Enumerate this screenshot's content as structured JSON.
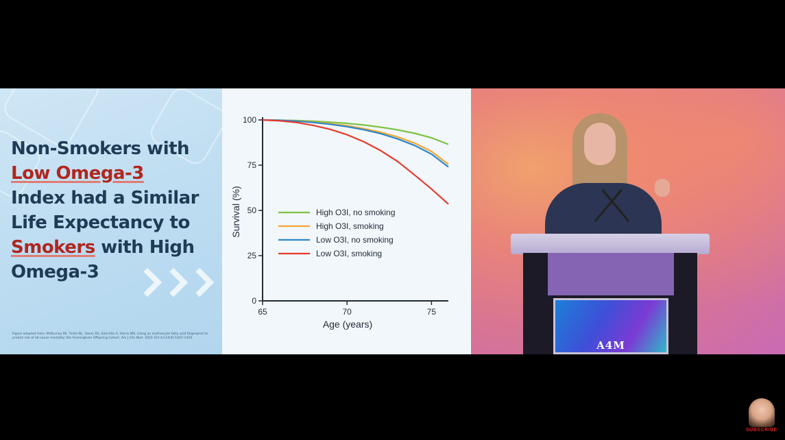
{
  "slide": {
    "headline_lines": [
      {
        "text": "Non-Smokers with",
        "highlight": false
      },
      {
        "text": "Low Omega-3",
        "highlight": true
      },
      {
        "text": "Index had a Similar",
        "highlight": false
      },
      {
        "text": "Life Expectancy to",
        "highlight": false
      },
      {
        "text_highlight": "Smokers",
        "text_rest": " with High"
      },
      {
        "text": "Omega-3",
        "highlight": false
      }
    ],
    "citation": "Figure adapted from: McBurney MI, Tintle NL, Vasan RS, Sala-Vila A, Harris WS. Using an erythrocyte fatty acid fingerprint to predict risk of all-cause mortality: the Framingham Offspring Cohort. Am J Clin Nutr. 2021 Oct 4;114(4):1447-1454.",
    "colors": {
      "headline": "#1f3b55",
      "highlight": "#b0271f",
      "panel_bg": "#bcdcf1"
    }
  },
  "chart_data": {
    "type": "line",
    "title": "",
    "xlabel": "Age (years)",
    "ylabel": "Survival (%)",
    "xlim": [
      65,
      76
    ],
    "ylim": [
      0,
      100
    ],
    "xticks": [
      65,
      70,
      75
    ],
    "yticks": [
      0,
      25,
      50,
      75,
      100
    ],
    "grid": false,
    "legend_position": "center",
    "series": [
      {
        "name": "High O3I, no smoking",
        "color": "#7cc242",
        "x": [
          65,
          66,
          67,
          68,
          69,
          70,
          71,
          72,
          73,
          74,
          75,
          76
        ],
        "y": [
          100,
          99.9,
          99.7,
          99.3,
          98.8,
          98.1,
          97.2,
          96.0,
          94.5,
          92.6,
          90.1,
          86.5
        ]
      },
      {
        "name": "High O3I, smoking",
        "color": "#f5a531",
        "x": [
          65,
          66,
          67,
          68,
          69,
          70,
          71,
          72,
          73,
          74,
          75,
          76
        ],
        "y": [
          100,
          99.8,
          99.4,
          98.8,
          97.9,
          96.8,
          95.2,
          93.2,
          90.6,
          87.2,
          82.6,
          75.5
        ]
      },
      {
        "name": "Low O3I, no smoking",
        "color": "#2c86c7",
        "x": [
          65,
          66,
          67,
          68,
          69,
          70,
          71,
          72,
          73,
          74,
          75,
          76
        ],
        "y": [
          100,
          99.8,
          99.3,
          98.6,
          97.6,
          96.3,
          94.6,
          92.4,
          89.5,
          85.9,
          81.1,
          74.0
        ]
      },
      {
        "name": "Low O3I, smoking",
        "color": "#e8392a",
        "x": [
          65,
          66,
          67,
          68,
          69,
          70,
          71,
          72,
          73,
          74,
          75,
          76
        ],
        "y": [
          100,
          99.5,
          98.6,
          97.0,
          94.8,
          91.8,
          87.9,
          83.0,
          77.0,
          69.6,
          61.8,
          53.5
        ]
      }
    ]
  },
  "stage": {
    "podium_logo": "A4M",
    "colors": {
      "backdrop": "#e9847a",
      "podium_glow": "#be8cff"
    }
  },
  "channel": {
    "subscribe_label": "SUBSCRIBE",
    "subscribe_color": "#e02020"
  }
}
